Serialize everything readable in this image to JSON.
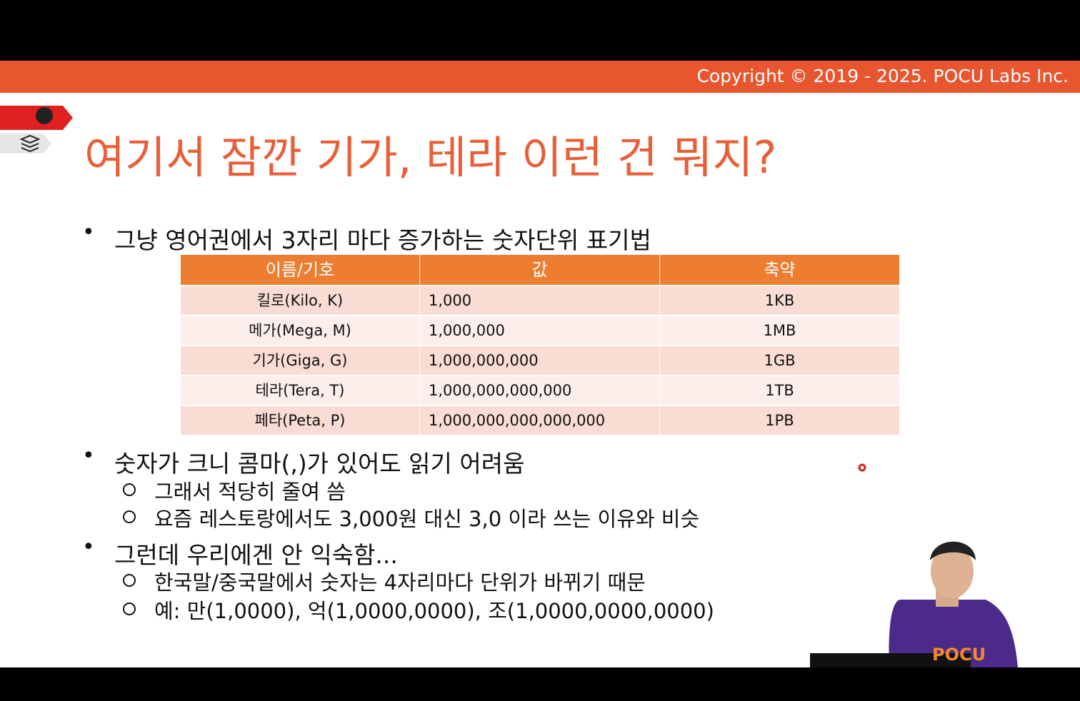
{
  "header": {
    "copyright": "Copyright © 2019 - 2025. POCU Labs Inc."
  },
  "title": "여기서 잠깐 기가, 테라 이런 건 뭐지?",
  "bullets": [
    {
      "text": "그냥 영어권에서 3자리 마다 증가하는 숫자단위 표기법",
      "subitems": []
    },
    {
      "text": "숫자가 크니 콤마(,)가 있어도 읽기 어려움",
      "subitems": [
        "그래서 적당히 줄여 씀",
        "요즘 레스토랑에서도 3,000원 대신 3,0 이라 쓰는 이유와 비슷"
      ]
    },
    {
      "text": "그런데 우리에겐 안 익숙함...",
      "subitems": [
        "한국말/중국말에서 숫자는 4자리마다 단위가 바뀌기 때문",
        "예: 만(1,0000), 억(1,0000,0000), 조(1,0000,0000,0000)"
      ]
    }
  ],
  "table": {
    "columns": [
      "이름/기호",
      "값",
      "축약"
    ],
    "rows": [
      [
        "킬로(Kilo, K)",
        "1,000",
        "1KB"
      ],
      [
        "메가(Mega, M)",
        "1,000,000",
        "1MB"
      ],
      [
        "기가(Giga, G)",
        "1,000,000,000",
        "1GB"
      ],
      [
        "테라(Tera, T)",
        "1,000,000,000,000",
        "1TB"
      ],
      [
        "페타(Peta, P)",
        "1,000,000,000,000,000",
        "1PB"
      ]
    ]
  }
}
